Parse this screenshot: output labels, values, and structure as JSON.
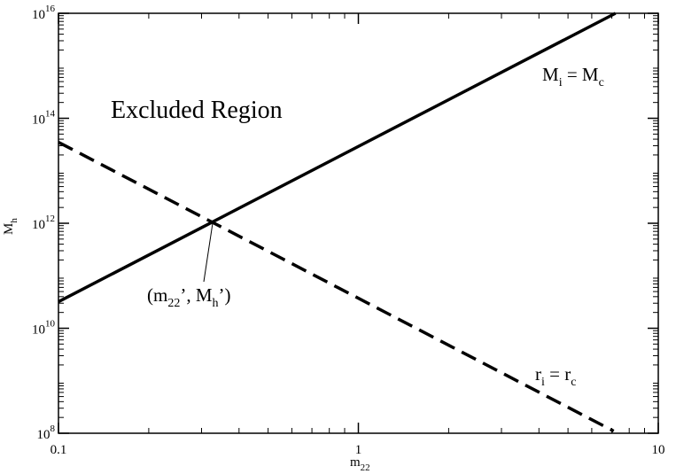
{
  "chart_data": {
    "type": "line",
    "log_x": true,
    "log_y": true,
    "xlim": [
      0.1,
      10
    ],
    "ylim": [
      100000000.0,
      1e+16
    ],
    "xticks": [
      0.1,
      1,
      10
    ],
    "yticks": [
      {
        "value": 100000000.0,
        "label": {
          "base": "10",
          "exp": "8"
        }
      },
      {
        "value": 10000000000.0,
        "label": {
          "base": "10",
          "exp": "10"
        }
      },
      {
        "value": 1000000000000.0,
        "label": {
          "base": "10",
          "exp": "12"
        }
      },
      {
        "value": 100000000000000.0,
        "label": {
          "base": "10",
          "exp": "14"
        }
      },
      {
        "value": 1e+16,
        "label": {
          "base": "10",
          "exp": "16"
        }
      }
    ],
    "xlabel": {
      "base": "m",
      "sub": "22"
    },
    "ylabel": {
      "base": "M",
      "sub": "h"
    },
    "series": [
      {
        "x": [
          0.1,
          7.2
        ],
        "values": [
          32000000000.0,
          1e+16
        ],
        "color": "#000000",
        "dash": false
      },
      {
        "x": [
          0.1,
          7.1
        ],
        "values": [
          35000000000000.0,
          110000000.0
        ],
        "color": "#000000",
        "dash": true
      }
    ],
    "annotations": {
      "excluded": "Excluded Region",
      "solid_label": [
        {
          "t": "M"
        },
        {
          "t": "i",
          "sub": true
        },
        {
          "t": " = M"
        },
        {
          "t": "c",
          "sub": true
        }
      ],
      "dashed_label": [
        {
          "t": "r"
        },
        {
          "t": "i",
          "sub": true
        },
        {
          "t": " = r"
        },
        {
          "t": "c",
          "sub": true
        }
      ],
      "point_label": [
        {
          "t": "(m"
        },
        {
          "t": "22",
          "sub": true
        },
        {
          "t": "’, M"
        },
        {
          "t": "h",
          "sub": true
        },
        {
          "t": "’)"
        }
      ]
    }
  }
}
